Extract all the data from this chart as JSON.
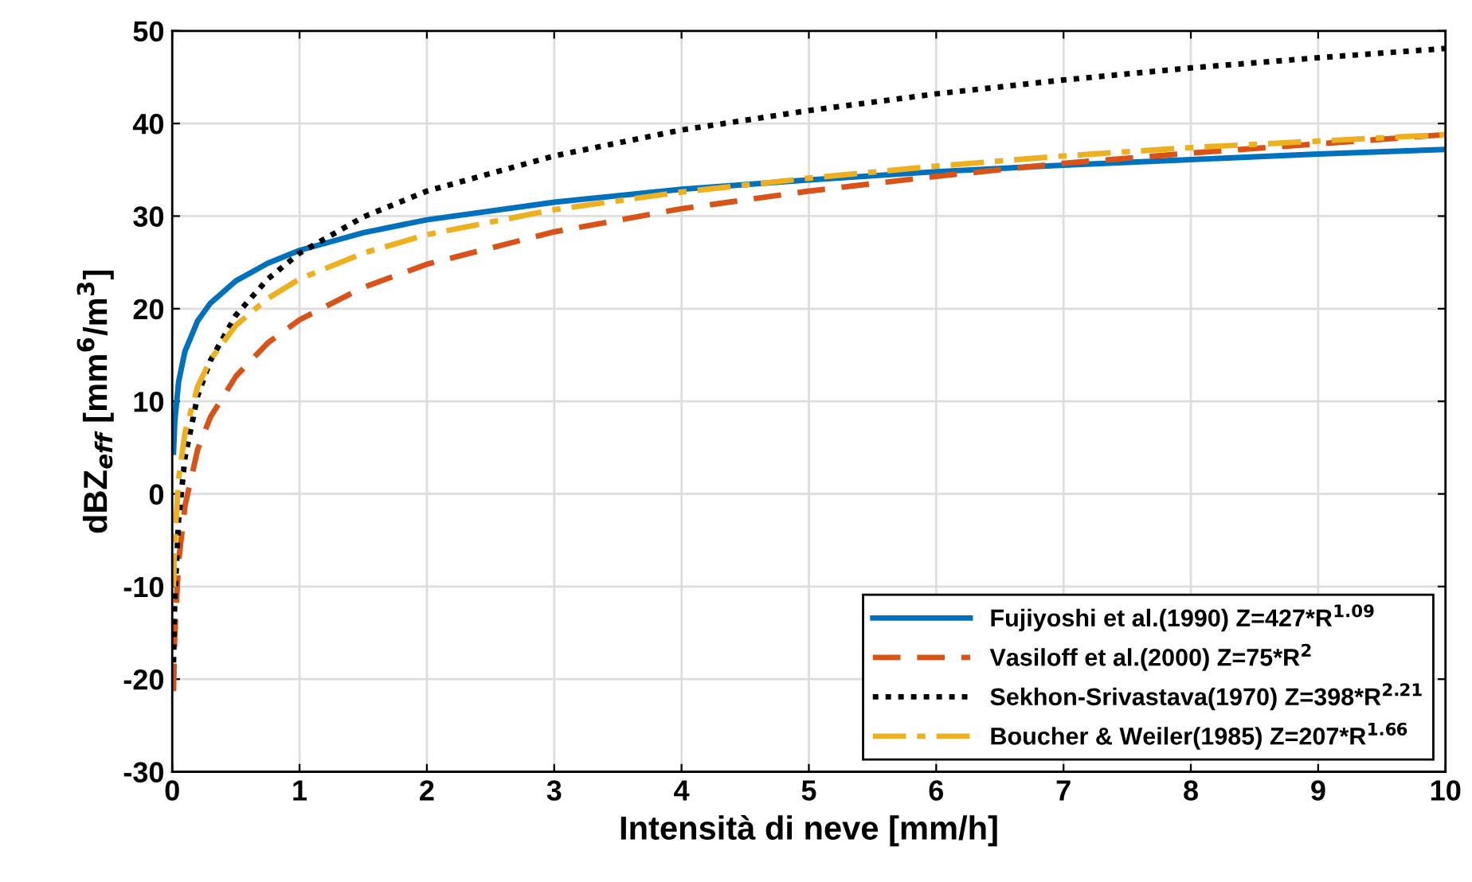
{
  "chart_data": {
    "type": "line",
    "xlabel": "Intensità di neve [mm/h]",
    "ylabel": "dBZ$_{eff}$ [mm$^{6}$/m$^{3}$]",
    "x": [
      0.01,
      0.02,
      0.05,
      0.1,
      0.2,
      0.3,
      0.5,
      0.75,
      1,
      1.5,
      2,
      3,
      4,
      5,
      6,
      7,
      8,
      9,
      10
    ],
    "series": [
      {
        "name": "Fujiyoshi et al.(1990) Z=427*R$^{1.09}$",
        "color": "#0072bd",
        "line_style": "solid",
        "values": [
          4.5,
          7.8,
          12.1,
          15.4,
          18.7,
          20.6,
          23.0,
          24.9,
          26.3,
          28.2,
          29.6,
          31.5,
          32.9,
          33.9,
          34.8,
          35.5,
          36.1,
          36.7,
          37.2
        ]
      },
      {
        "name": "Vasiloff et al.(2000) Z=75*R$^{2}$",
        "color": "#d95319",
        "line_style": "dashed",
        "values": [
          -21.3,
          -15.2,
          -7.3,
          -1.3,
          4.8,
          8.3,
          12.7,
          16.3,
          18.8,
          22.3,
          24.8,
          28.3,
          30.8,
          32.7,
          34.3,
          35.7,
          36.8,
          37.8,
          38.8
        ]
      },
      {
        "name": "Sekhon-Srivastava(1970) Z=398*R$^{2.21}$",
        "color": "#000000",
        "line_style": "dotted",
        "values": [
          -18.2,
          -11.5,
          -2.8,
          3.9,
          10.6,
          14.4,
          19.3,
          23.2,
          26.0,
          29.9,
          32.7,
          36.5,
          39.3,
          41.4,
          43.2,
          44.7,
          46.0,
          47.1,
          48.1
        ]
      },
      {
        "name": "Boucher & Weiler(1985) Z=207*R$^{1.66}$",
        "color": "#edb120",
        "line_style": "dashdot",
        "values": [
          -10.0,
          -5.0,
          1.6,
          6.6,
          11.6,
          14.5,
          18.2,
          21.1,
          23.2,
          26.0,
          28.0,
          30.7,
          32.6,
          34.1,
          35.4,
          36.5,
          37.4,
          38.1,
          38.8
        ]
      }
    ],
    "xlim": [
      0,
      10
    ],
    "xticks": [
      0,
      1,
      2,
      3,
      4,
      5,
      6,
      7,
      8,
      9,
      10
    ],
    "ylim": [
      -30,
      50
    ],
    "yticks": [
      -30,
      -20,
      -10,
      0,
      10,
      20,
      30,
      40,
      50
    ],
    "grid": true,
    "legend": "bottom right",
    "marker": "none"
  }
}
